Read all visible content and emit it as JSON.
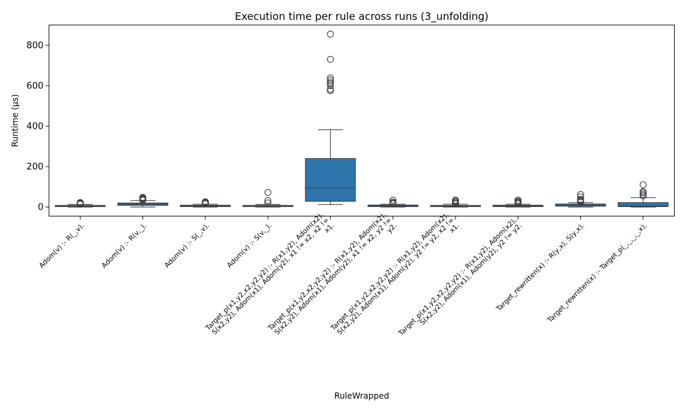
{
  "chart_data": {
    "type": "box",
    "title": "Execution time per rule across runs (3_unfolding)",
    "xlabel": "RuleWrapped",
    "ylabel": "Runtime (µs)",
    "ylim": [
      -45,
      900
    ],
    "yticks": [
      0,
      200,
      400,
      600,
      800
    ],
    "grid": false,
    "box_color": "#2e75ac",
    "categories": [
      {
        "label_lines": [
          "Adom(v) :-    R(_,v)."
        ],
        "whislo": 0,
        "q1": 2,
        "median": 5,
        "q3": 8,
        "whishi": 13,
        "outliers": [
          14,
          16,
          18,
          20,
          22
        ]
      },
      {
        "label_lines": [
          "Adom(v) :-    R(v,_)."
        ],
        "whislo": 0,
        "q1": 8,
        "median": 14,
        "q3": 20,
        "whishi": 32,
        "outliers": [
          34,
          36,
          38,
          40,
          44,
          48
        ]
      },
      {
        "label_lines": [
          "Adom(v) :-    S(_,v)."
        ],
        "whislo": 0,
        "q1": 2,
        "median": 5,
        "q3": 9,
        "whishi": 14,
        "outliers": [
          16,
          18,
          20,
          22,
          26
        ]
      },
      {
        "label_lines": [
          "Adom(v) :-    S(v,_)."
        ],
        "whislo": 0,
        "q1": 2,
        "median": 5,
        "q3": 8,
        "whishi": 13,
        "outliers": [
          20,
          32,
          72
        ]
      },
      {
        "label_lines": [
          "Target_p(x1,y2,x2,y2,y2) :-    R(x1,y2),    Adom(x2),",
          "S(x2,y2),    Adom(x1),    Adom(y2),    x1 != x2,    x2 !=",
          "x1."
        ],
        "whislo": 12,
        "q1": 28,
        "median": 95,
        "q3": 240,
        "whishi": 382,
        "outliers": [
          575,
          582,
          600,
          610,
          618,
          628,
          638,
          730,
          855
        ]
      },
      {
        "label_lines": [
          "Target_p(x1,y2,x2,y2,y2) :-    R(x1,y2),    Adom(x2),",
          "S(x2,y2),    Adom(x1),    Adom(y2),    x1 != x2,    y2 !=",
          "y2."
        ],
        "whislo": 0,
        "q1": 2,
        "median": 5,
        "q3": 10,
        "whishi": 14,
        "outliers": [
          16,
          18,
          20,
          24,
          34
        ]
      },
      {
        "label_lines": [
          "Target_p(x1,y2,x2,y2,y2) :-    R(x1,y2),    Adom(x2),",
          "S(x2,y2),    Adom(x1),    Adom(y2),    y2 != y2,    x2 !=",
          "x1."
        ],
        "whislo": 0,
        "q1": 2,
        "median": 5,
        "q3": 8,
        "whishi": 14,
        "outliers": [
          16,
          20,
          24,
          30,
          34
        ]
      },
      {
        "label_lines": [
          "Target_p(x1,y2,x2,y2,y2) :-    R(x1,y2),    Adom(x2),",
          "S(x2,y2),    Adom(x1),    Adom(y2),    y2 != y2."
        ],
        "whislo": 0,
        "q1": 2,
        "median": 5,
        "q3": 9,
        "whishi": 14,
        "outliers": [
          16,
          20,
          24,
          28,
          34
        ]
      },
      {
        "label_lines": [
          "Target_rewritten(x) :-    R(y,x),    S(y,x)."
        ],
        "whislo": 0,
        "q1": 4,
        "median": 10,
        "q3": 15,
        "whishi": 22,
        "outliers": [
          26,
          30,
          34,
          38,
          50,
          62
        ]
      },
      {
        "label_lines": [
          "Target_rewritten(x) :-    Target_p(_,_,_,_,x)."
        ],
        "whislo": 0,
        "q1": 2,
        "median": 5,
        "q3": 22,
        "whishi": 46,
        "outliers": [
          55,
          62,
          70,
          76,
          110
        ]
      }
    ]
  }
}
